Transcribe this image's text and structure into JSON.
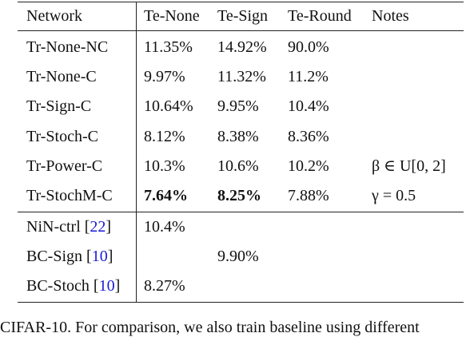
{
  "table": {
    "header": [
      "Network",
      "Te-None",
      "Te-Sign",
      "Te-Round",
      "Notes"
    ],
    "groups": [
      [
        [
          [
            "Tr-None-NC"
          ],
          "11.35%",
          "14.92%",
          "90.0%",
          null
        ],
        [
          [
            "Tr-None-C"
          ],
          "9.97%",
          "11.32%",
          "11.2%",
          null
        ],
        [
          [
            "Tr-Sign-C"
          ],
          "10.64%",
          "9.95%",
          "10.4%",
          null
        ],
        [
          [
            "Tr-Stoch-C"
          ],
          "8.12%",
          "8.38%",
          "8.36%",
          null
        ],
        [
          [
            "Tr-Power-C"
          ],
          "10.3%",
          "10.6%",
          "10.2%",
          "β ∈ U[0, 2]"
        ],
        [
          [
            "Tr-StochM-C"
          ],
          {
            "text": "7.64%",
            "bold": true
          },
          {
            "text": "8.25%",
            "bold": true
          },
          "7.88%",
          "γ = 0.5"
        ]
      ],
      [
        [
          [
            {
              "text": "NiN-ctrl ["
            },
            {
              "text": "22",
              "link": true
            },
            {
              "text": "]"
            }
          ],
          "10.4%",
          null,
          null,
          null
        ],
        [
          [
            {
              "text": "BC-Sign ["
            },
            {
              "text": "10",
              "link": true
            },
            {
              "text": "]"
            }
          ],
          null,
          "9.90%",
          null,
          null
        ],
        [
          [
            {
              "text": "BC-Stoch ["
            },
            {
              "text": "10",
              "link": true
            },
            {
              "text": "]"
            }
          ],
          "8.27%",
          null,
          null,
          null
        ]
      ]
    ],
    "caption": "CIFAR-10. For comparison, we also train baseline using different"
  }
}
